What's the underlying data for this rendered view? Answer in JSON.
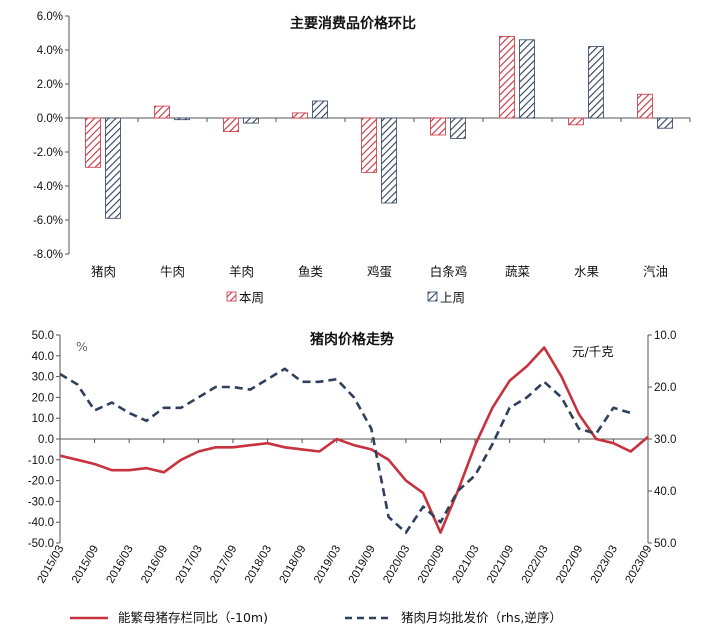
{
  "colors": {
    "red": "#C8323F",
    "navy": "#2F3F5C"
  },
  "chart_data": [
    {
      "type": "bar",
      "title": "主要消费品价格环比",
      "categories": [
        "猪肉",
        "牛肉",
        "羊肉",
        "鱼类",
        "鸡蛋",
        "白条鸡",
        "蔬菜",
        "水果",
        "汽油"
      ],
      "series": [
        {
          "name": "本周",
          "values": [
            -0.029,
            0.007,
            -0.008,
            0.003,
            -0.032,
            -0.01,
            0.048,
            -0.004,
            0.014
          ],
          "pattern": "diagonal",
          "color": "#C8323F"
        },
        {
          "name": "上周",
          "values": [
            -0.059,
            -0.001,
            -0.003,
            0.01,
            -0.05,
            -0.012,
            0.046,
            0.042,
            -0.006
          ],
          "pattern": "diagonal",
          "color": "#2F3F5C"
        }
      ],
      "yticks": [
        "6.0%",
        "4.0%",
        "2.0%",
        "0.0%",
        "-2.0%",
        "-4.0%",
        "-6.0%",
        "-8.0%"
      ],
      "ylim": [
        -0.08,
        0.06
      ],
      "legend_position": "bottom"
    },
    {
      "type": "line",
      "title": "猪肉价格走势",
      "left_unit": "%",
      "right_unit": "元/千克",
      "left_yticks": [
        "50.0",
        "40.0",
        "30.0",
        "20.0",
        "10.0",
        "0.0",
        "-10.0",
        "-20.0",
        "-30.0",
        "-40.0",
        "-50.0"
      ],
      "left_ylim": [
        -50,
        50
      ],
      "right_yticks": [
        "10.0",
        "20.0",
        "30.0",
        "40.0",
        "50.0"
      ],
      "right_ylim": [
        10,
        50
      ],
      "right_inverted": true,
      "xticks": [
        "2015/03",
        "2015/09",
        "2016/03",
        "2016/09",
        "2017/03",
        "2017/09",
        "2018/03",
        "2018/09",
        "2019/03",
        "2019/09",
        "2020/03",
        "2020/09",
        "2021/03",
        "2021/09",
        "2022/03",
        "2022/09",
        "2023/03",
        "2023/09"
      ],
      "series": [
        {
          "name": "能繁母猪存栏同比（-10m)",
          "axis": "left",
          "style": "solid",
          "color": "#C8323F",
          "x": [
            "2015/03",
            "2015/06",
            "2015/09",
            "2015/12",
            "2016/03",
            "2016/06",
            "2016/09",
            "2016/12",
            "2017/03",
            "2017/06",
            "2017/09",
            "2017/12",
            "2018/03",
            "2018/06",
            "2018/09",
            "2018/12",
            "2019/03",
            "2019/06",
            "2019/09",
            "2019/12",
            "2020/03",
            "2020/06",
            "2020/09",
            "2020/12",
            "2021/03",
            "2021/06",
            "2021/09",
            "2021/12",
            "2022/03",
            "2022/06",
            "2022/09",
            "2022/12",
            "2023/03",
            "2023/06",
            "2023/09"
          ],
          "values": [
            -8,
            -10,
            -12,
            -15,
            -15,
            -14,
            -16,
            -10,
            -6,
            -4,
            -4,
            -3,
            -2,
            -4,
            -5,
            -6,
            0,
            -3,
            -5,
            -10,
            -20,
            -26,
            -45,
            -25,
            -3,
            15,
            28,
            35,
            44,
            30,
            12,
            0,
            -2,
            -6,
            1
          ]
        },
        {
          "name": "猪肉月均批发价（rhs,逆序）",
          "axis": "right",
          "style": "dashed",
          "color": "#2F3F5C",
          "x": [
            "2015/03",
            "2015/06",
            "2015/09",
            "2015/12",
            "2016/03",
            "2016/06",
            "2016/09",
            "2016/12",
            "2017/03",
            "2017/06",
            "2017/09",
            "2017/12",
            "2018/03",
            "2018/06",
            "2018/09",
            "2018/12",
            "2019/03",
            "2019/06",
            "2019/09",
            "2019/12",
            "2020/03",
            "2020/06",
            "2020/09",
            "2020/12",
            "2021/03",
            "2021/06",
            "2021/09",
            "2021/12",
            "2022/03",
            "2022/06",
            "2022/09",
            "2022/12",
            "2023/03",
            "2023/06"
          ],
          "values": [
            17.5,
            19.5,
            24.5,
            23,
            25,
            26.5,
            24,
            24,
            22,
            20,
            20,
            20.5,
            18.5,
            16.5,
            19,
            19,
            18.5,
            22,
            28,
            45,
            48,
            43,
            46,
            40,
            37,
            31,
            24,
            22,
            19,
            22,
            28,
            29,
            24,
            25
          ]
        }
      ],
      "legend_position": "bottom"
    }
  ]
}
